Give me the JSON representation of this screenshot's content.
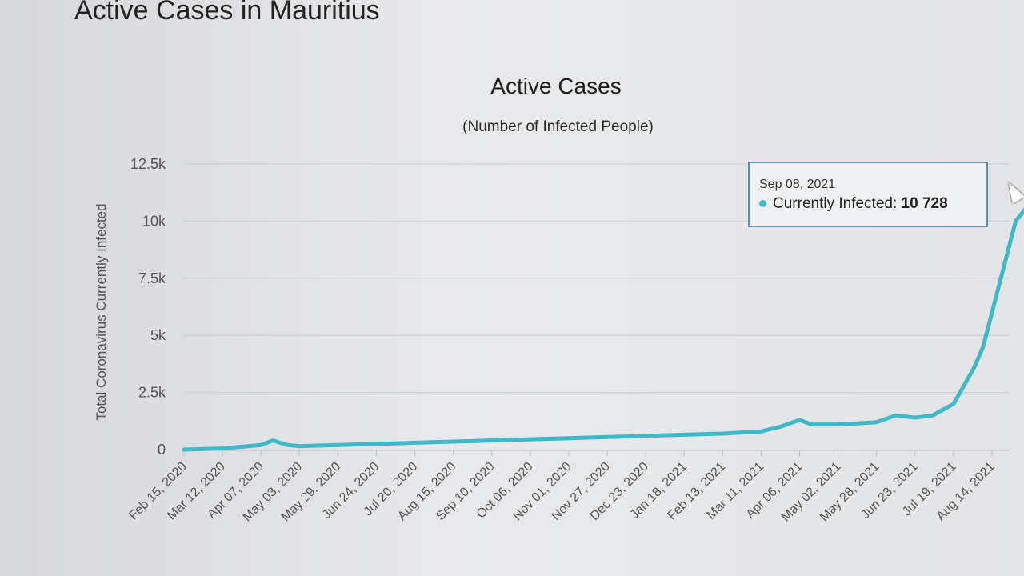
{
  "page": {
    "title": "Active Cases in Mauritius"
  },
  "tooltip": {
    "date": "Sep 08, 2021",
    "label": "Currently Infected: ",
    "value": "10 728"
  },
  "chart_data": {
    "type": "line",
    "title": "Active Cases",
    "subtitle": "(Number of Infected People)",
    "ylabel": "Total Coronavirus Currently Infected",
    "xlabel": "",
    "ylim": [
      0,
      12500
    ],
    "yticks": [
      "0",
      "2.5k",
      "5k",
      "7.5k",
      "10k",
      "12.5k"
    ],
    "ytick_values": [
      0,
      2500,
      5000,
      7500,
      10000,
      12500
    ],
    "xticks": [
      "Feb 15, 2020",
      "Mar 12, 2020",
      "Apr 07, 2020",
      "May 03, 2020",
      "May 29, 2020",
      "Jun 24, 2020",
      "Jul 20, 2020",
      "Aug 15, 2020",
      "Sep 10, 2020",
      "Oct 06, 2020",
      "Nov 01, 2020",
      "Nov 27, 2020",
      "Dec 23, 2020",
      "Jan 18, 2021",
      "Feb 13, 2021",
      "Mar 11, 2021",
      "Apr 06, 2021",
      "May 02, 2021",
      "May 28, 2021",
      "Jun 23, 2021",
      "Jul 19, 2021",
      "Aug 14, 2021"
    ],
    "grid": true,
    "color": "#3fb8c8",
    "series": [
      {
        "name": "Currently Infected",
        "x": [
          "Feb 15, 2020",
          "Mar 12, 2020",
          "Apr 07, 2020",
          "Apr 15, 2020",
          "Apr 25, 2020",
          "May 03, 2020",
          "May 29, 2020",
          "Jun 24, 2020",
          "Jul 20, 2020",
          "Aug 15, 2020",
          "Sep 10, 2020",
          "Oct 06, 2020",
          "Nov 01, 2020",
          "Nov 27, 2020",
          "Dec 23, 2020",
          "Jan 18, 2021",
          "Feb 13, 2021",
          "Mar 11, 2021",
          "Mar 24, 2021",
          "Apr 06, 2021",
          "Apr 14, 2021",
          "May 02, 2021",
          "May 28, 2021",
          "Jun 10, 2021",
          "Jun 23, 2021",
          "Jul 05, 2021",
          "Jul 19, 2021",
          "Jul 26, 2021",
          "Aug 02, 2021",
          "Aug 08, 2021",
          "Aug 14, 2021",
          "Aug 22, 2021",
          "Aug 30, 2021",
          "Sep 08, 2021"
        ],
        "values": [
          0,
          50,
          200,
          400,
          200,
          150,
          200,
          250,
          300,
          350,
          400,
          450,
          500,
          550,
          600,
          650,
          700,
          800,
          1000,
          1300,
          1100,
          1100,
          1200,
          1500,
          1400,
          1500,
          2000,
          2800,
          3600,
          4500,
          6000,
          8000,
          10000,
          10728
        ]
      }
    ]
  }
}
